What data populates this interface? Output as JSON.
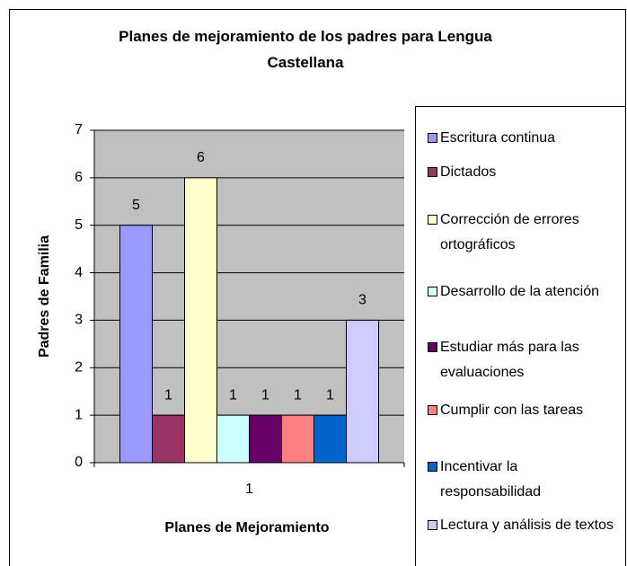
{
  "chart_data": {
    "type": "bar",
    "title": "Planes de mejoramiento de los padres para Lengua Castellana",
    "x_label": "Planes de Mejoramiento",
    "y_label": "Padres de Familia",
    "categories": [
      "1"
    ],
    "series": [
      {
        "name": "Escritura continua",
        "color": "#9999ff",
        "values": [
          5
        ]
      },
      {
        "name": "Dictados",
        "color": "#993366",
        "values": [
          1
        ]
      },
      {
        "name": "Corrección de errores ortográficos",
        "color": "#ffffcc",
        "values": [
          6
        ]
      },
      {
        "name": "Desarrollo de la atención",
        "color": "#ccffff",
        "values": [
          1
        ]
      },
      {
        "name": "Estudiar más para las evaluaciones",
        "color": "#660066",
        "values": [
          1
        ]
      },
      {
        "name": "Cumplir con las tareas",
        "color": "#ff8080",
        "values": [
          1
        ]
      },
      {
        "name": "Incentivar la responsabilidad",
        "color": "#0066cc",
        "values": [
          1
        ]
      },
      {
        "name": "Lectura y análisis de textos",
        "color": "#ccccff",
        "values": [
          3
        ]
      }
    ],
    "ylim": [
      0,
      7
    ],
    "yticks": [
      0,
      1,
      2,
      3,
      4,
      5,
      6,
      7
    ],
    "grid": true,
    "legend": "right"
  }
}
